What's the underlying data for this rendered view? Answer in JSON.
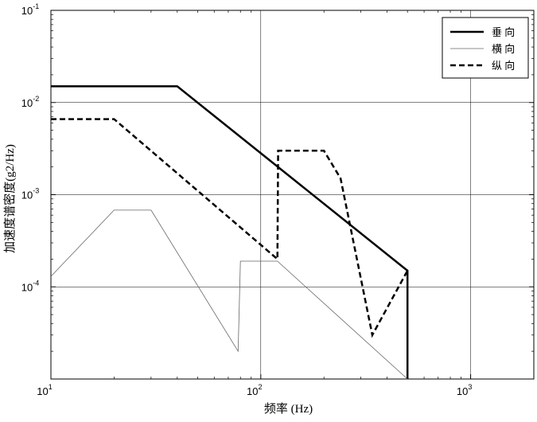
{
  "chart_data": {
    "type": "line",
    "title": "",
    "xlabel": "频率 (Hz)",
    "ylabel": "加速度谱密度(g2/Hz)",
    "xscale": "log",
    "yscale": "log",
    "xlim": [
      10,
      2000
    ],
    "ylim": [
      1e-05,
      0.1
    ],
    "grid": true,
    "legend_position": "top-right",
    "x_ticks": [
      {
        "base": "10",
        "exp": "1"
      },
      {
        "base": "10",
        "exp": "2"
      },
      {
        "base": "10",
        "exp": "3"
      }
    ],
    "y_ticks": [
      {
        "base": "10",
        "exp": "-4"
      },
      {
        "base": "10",
        "exp": "-3"
      },
      {
        "base": "10",
        "exp": "-2"
      },
      {
        "base": "10",
        "exp": "-1"
      }
    ],
    "series": [
      {
        "name": "垂 向",
        "style": "solid",
        "weight": "thick",
        "color": "#000000",
        "x": [
          10,
          40,
          500,
          500
        ],
        "y": [
          0.015,
          0.015,
          0.00015,
          1e-05
        ]
      },
      {
        "name": "横 向",
        "style": "solid",
        "weight": "thin",
        "color": "#666666",
        "x": [
          10,
          20,
          30,
          78,
          80,
          120,
          500
        ],
        "y": [
          0.00013,
          0.00068,
          0.00068,
          2e-05,
          0.00019,
          0.00019,
          1e-05
        ]
      },
      {
        "name": "纵 向",
        "style": "dashed",
        "weight": "thick",
        "color": "#000000",
        "x": [
          10,
          20,
          120,
          121,
          200,
          240,
          340,
          500
        ],
        "y": [
          0.0066,
          0.0066,
          0.0002,
          0.003,
          0.003,
          0.0015,
          3e-05,
          0.00015
        ]
      }
    ]
  }
}
